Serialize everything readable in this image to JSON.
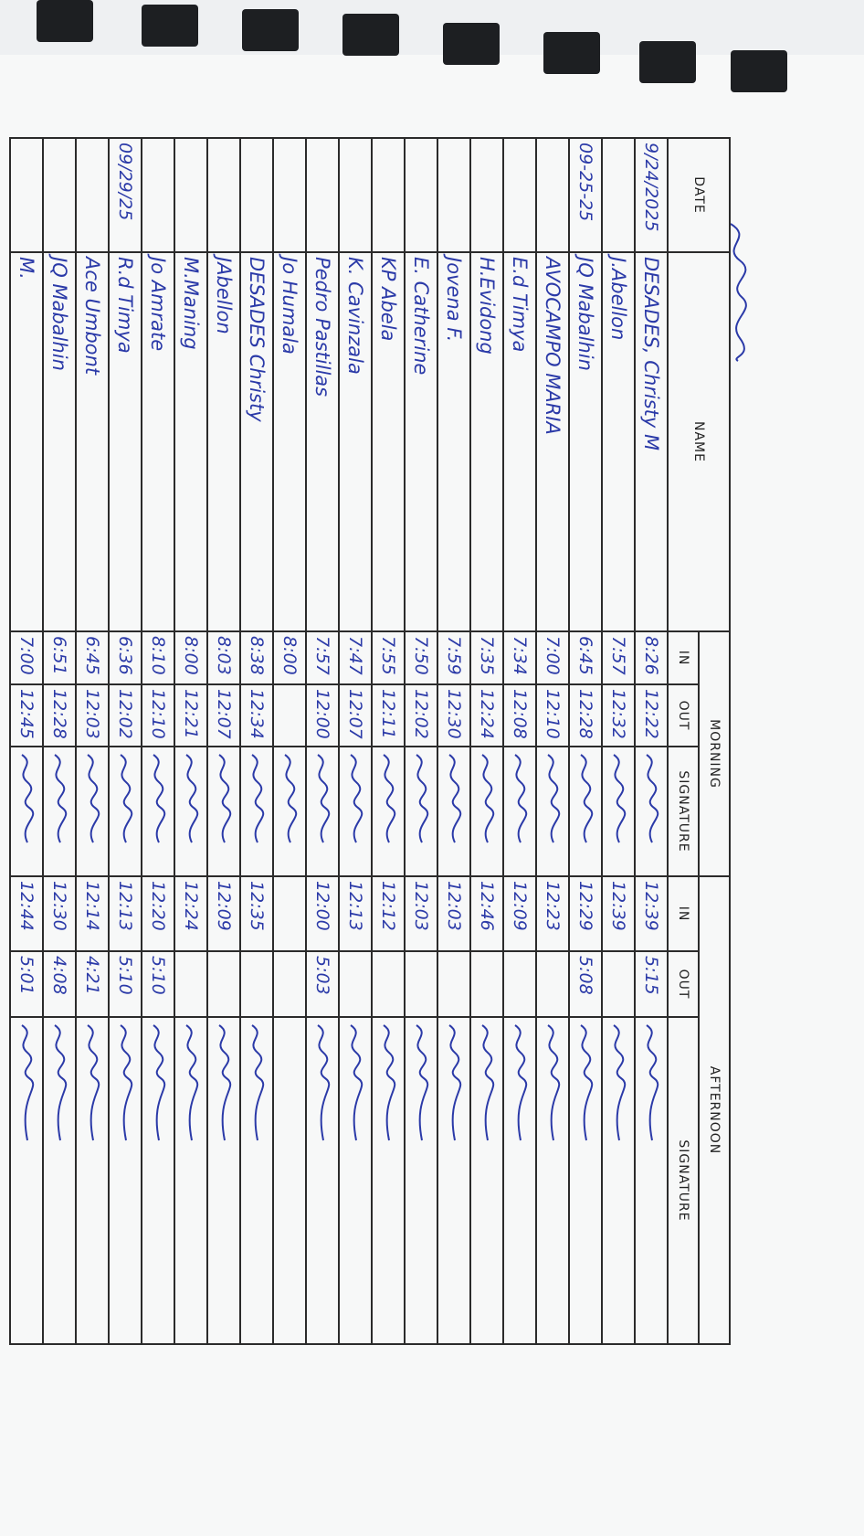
{
  "header": {
    "date": "DATE",
    "name": "NAME",
    "morning": "MORNING",
    "afternoon": "AFTERNOON",
    "in": "IN",
    "out": "OUT",
    "signature": "SIGNATURE"
  },
  "ink_color": "#2b3aa8",
  "rows": [
    {
      "date": "9/24/2025",
      "name": "DESADES, Christy M",
      "am_in": "8:26",
      "am_out": "12:22",
      "pm_in": "12:39",
      "pm_out": "5:15"
    },
    {
      "date": "",
      "name": "J.Abellon",
      "am_in": "7:57",
      "am_out": "12:32",
      "pm_in": "12:39",
      "pm_out": ""
    },
    {
      "date": "09-25-25",
      "name": "JQ Mabalhin",
      "am_in": "6:45",
      "am_out": "12:28",
      "pm_in": "12:29",
      "pm_out": "5:08"
    },
    {
      "date": "",
      "name": "AVOCAMPO MARIA",
      "am_in": "7:00",
      "am_out": "12:10",
      "pm_in": "12:23",
      "pm_out": ""
    },
    {
      "date": "",
      "name": "E.d Timya",
      "am_in": "7:34",
      "am_out": "12:08",
      "pm_in": "12:09",
      "pm_out": ""
    },
    {
      "date": "",
      "name": "H.Evidong",
      "am_in": "7:35",
      "am_out": "12:24",
      "pm_in": "12:46",
      "pm_out": ""
    },
    {
      "date": "",
      "name": "Jovena F.",
      "am_in": "7:59",
      "am_out": "12:30",
      "pm_in": "12:03",
      "pm_out": ""
    },
    {
      "date": "",
      "name": "E. Catherine",
      "am_in": "7:50",
      "am_out": "12:02",
      "pm_in": "12:03",
      "pm_out": ""
    },
    {
      "date": "",
      "name": "KP Abela",
      "am_in": "7:55",
      "am_out": "12:11",
      "pm_in": "12:12",
      "pm_out": ""
    },
    {
      "date": "",
      "name": "K. Cavinzala",
      "am_in": "7:47",
      "am_out": "12:07",
      "pm_in": "12:13",
      "pm_out": ""
    },
    {
      "date": "",
      "name": "Pedro Pastillas",
      "am_in": "7:57",
      "am_out": "12:00",
      "pm_in": "12:00",
      "pm_out": "5:03"
    },
    {
      "date": "",
      "name": "Jo Humala",
      "am_in": "8:00",
      "am_out": "",
      "pm_in": "",
      "pm_out": ""
    },
    {
      "date": "",
      "name": "DESADES Christy",
      "am_in": "8:38",
      "am_out": "12:34",
      "pm_in": "12:35",
      "pm_out": ""
    },
    {
      "date": "",
      "name": "JAbellon",
      "am_in": "8:03",
      "am_out": "12:07",
      "pm_in": "12:09",
      "pm_out": ""
    },
    {
      "date": "",
      "name": "M.Maning",
      "am_in": "8:00",
      "am_out": "12:21",
      "pm_in": "12:24",
      "pm_out": ""
    },
    {
      "date": "",
      "name": "Jo Amrate",
      "am_in": "8:10",
      "am_out": "12:10",
      "pm_in": "12:20",
      "pm_out": "5:10"
    },
    {
      "date": "09/29/25",
      "name": "R.d Timya",
      "am_in": "6:36",
      "am_out": "12:02",
      "pm_in": "12:13",
      "pm_out": "5:10"
    },
    {
      "date": "",
      "name": "Ace Umbont",
      "am_in": "6:45",
      "am_out": "12:03",
      "pm_in": "12:14",
      "pm_out": "4:21"
    },
    {
      "date": "",
      "name": "JQ Mabalhin",
      "am_in": "6:51",
      "am_out": "12:28",
      "pm_in": "12:30",
      "pm_out": "4:08"
    },
    {
      "date": "",
      "name": "M.",
      "am_in": "7:00",
      "am_out": "12:45",
      "pm_in": "12:44",
      "pm_out": "5:01"
    }
  ]
}
